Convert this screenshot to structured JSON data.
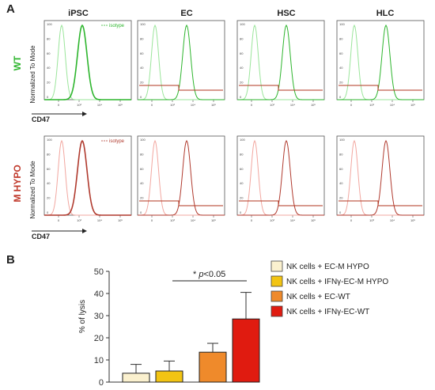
{
  "panels": {
    "a": "A",
    "b": "B"
  },
  "flow": {
    "columns": [
      "iPSC",
      "EC",
      "HSC",
      "HLC"
    ],
    "rows": [
      {
        "label": "WT",
        "color": "#2db52d"
      },
      {
        "label": "M HYPO",
        "color": "#c0392b"
      }
    ],
    "ylabel": "Normalized To Mode",
    "xlabel": "CD47",
    "isotype_label": "isotype",
    "yticks": [
      "100",
      "80",
      "60",
      "40",
      "20",
      "0"
    ],
    "xticks": [
      "0",
      "10³",
      "10⁴",
      "10⁵"
    ],
    "colors": {
      "wt": "#2db52d",
      "wt_iso": "#9be59b",
      "hypo": "#b03a2e",
      "hypo_iso": "#f2a7a0",
      "gate": "#b0341f"
    }
  },
  "chart_data": {
    "type": "bar",
    "ylabel": "% of lysis",
    "ylim": [
      0,
      50
    ],
    "yticks": [
      0,
      10,
      20,
      30,
      40,
      50
    ],
    "categories": [
      "NK cells + EC-M HYPO",
      "NK cells + IFNγ-EC-M HYPO",
      "NK cells + EC-WT",
      "NK cells + IFNγ-EC-WT"
    ],
    "values": [
      4,
      5,
      13.5,
      28.5
    ],
    "errors": [
      4,
      4.5,
      4,
      12
    ],
    "colors": [
      "#fbf1cf",
      "#f2c413",
      "#ef8a2b",
      "#e01b10"
    ],
    "annotation": {
      "star": "*",
      "p": "p",
      "text": "<0.05"
    }
  }
}
